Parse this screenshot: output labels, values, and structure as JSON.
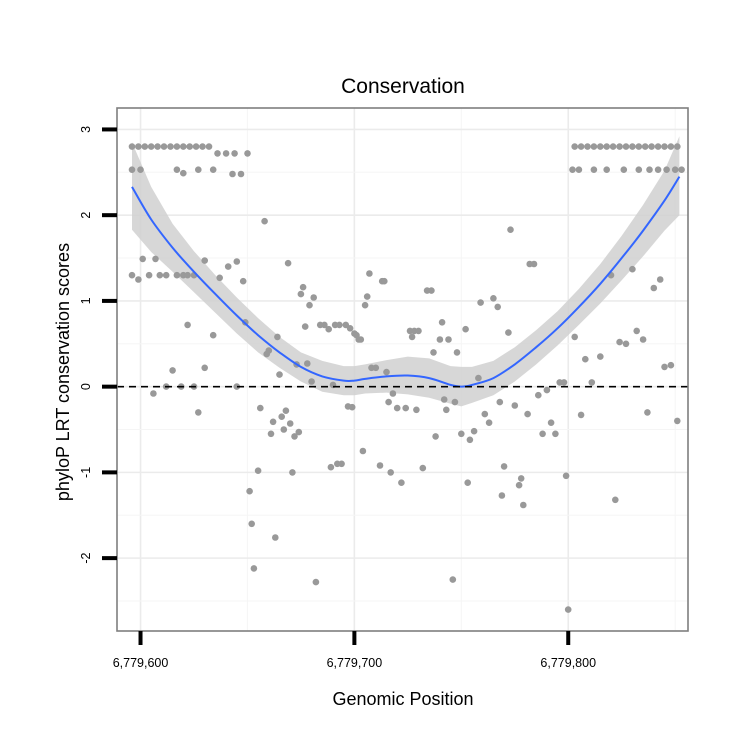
{
  "chart_data": {
    "type": "scatter",
    "title": "Conservation",
    "xlabel": "Genomic Position",
    "ylabel": "phyloP LRT conservation scores",
    "xlim": [
      6779589,
      6779856
    ],
    "ylim": [
      -2.85,
      3.25
    ],
    "x_ticks": [
      {
        "value": 6779600,
        "label": "6,779,600"
      },
      {
        "value": 6779700,
        "label": "6,779,700"
      },
      {
        "value": 6779800,
        "label": "6,779,800"
      }
    ],
    "y_ticks": [
      {
        "value": 3,
        "label": "3"
      },
      {
        "value": 2,
        "label": "2"
      },
      {
        "value": 1,
        "label": "1"
      },
      {
        "value": 0,
        "label": "0"
      },
      {
        "value": -1,
        "label": "-1"
      },
      {
        "value": -2,
        "label": "-2"
      }
    ],
    "reference_line": {
      "y": 0,
      "style": "dashed"
    },
    "series": [
      {
        "name": "scores",
        "kind": "points",
        "color": "#999999",
        "points": [
          [
            6779596,
            2.8
          ],
          [
            6779599,
            2.8
          ],
          [
            6779602,
            2.8
          ],
          [
            6779605,
            2.8
          ],
          [
            6779608,
            2.8
          ],
          [
            6779611,
            2.8
          ],
          [
            6779614,
            2.8
          ],
          [
            6779617,
            2.8
          ],
          [
            6779620,
            2.8
          ],
          [
            6779623,
            2.8
          ],
          [
            6779626,
            2.8
          ],
          [
            6779629,
            2.8
          ],
          [
            6779632,
            2.8
          ],
          [
            6779636,
            2.72
          ],
          [
            6779640,
            2.72
          ],
          [
            6779644,
            2.72
          ],
          [
            6779650,
            2.72
          ],
          [
            6779596,
            2.53
          ],
          [
            6779600,
            2.53
          ],
          [
            6779617,
            2.53
          ],
          [
            6779620,
            2.49
          ],
          [
            6779627,
            2.53
          ],
          [
            6779634,
            2.53
          ],
          [
            6779643,
            2.48
          ],
          [
            6779647,
            2.48
          ],
          [
            6779596,
            1.3
          ],
          [
            6779599,
            1.25
          ],
          [
            6779601,
            1.49
          ],
          [
            6779604,
            1.3
          ],
          [
            6779607,
            1.49
          ],
          [
            6779609,
            1.3
          ],
          [
            6779612,
            1.3
          ],
          [
            6779617,
            1.3
          ],
          [
            6779620,
            1.3
          ],
          [
            6779622,
            1.3
          ],
          [
            6779625,
            1.3
          ],
          [
            6779630,
            1.47
          ],
          [
            6779637,
            1.27
          ],
          [
            6779641,
            1.4
          ],
          [
            6779645,
            1.46
          ],
          [
            6779648,
            1.23
          ],
          [
            6779606,
            -0.08
          ],
          [
            6779612,
            0.0
          ],
          [
            6779615,
            0.19
          ],
          [
            6779619,
            0.0
          ],
          [
            6779622,
            0.72
          ],
          [
            6779625,
            0.0
          ],
          [
            6779627,
            -0.3
          ],
          [
            6779630,
            0.22
          ],
          [
            6779634,
            0.6
          ],
          [
            6779645,
            0.0
          ],
          [
            6779649,
            0.75
          ],
          [
            6779651,
            -1.22
          ],
          [
            6779652,
            -1.6
          ],
          [
            6779653,
            -2.12
          ],
          [
            6779655,
            -0.98
          ],
          [
            6779656,
            -0.25
          ],
          [
            6779658,
            1.93
          ],
          [
            6779659,
            0.38
          ],
          [
            6779660,
            0.42
          ],
          [
            6779661,
            -0.55
          ],
          [
            6779662,
            -0.41
          ],
          [
            6779663,
            -1.76
          ],
          [
            6779664,
            0.58
          ],
          [
            6779665,
            0.14
          ],
          [
            6779666,
            -0.35
          ],
          [
            6779667,
            -0.5
          ],
          [
            6779668,
            -0.28
          ],
          [
            6779669,
            1.44
          ],
          [
            6779670,
            -0.43
          ],
          [
            6779671,
            -1.0
          ],
          [
            6779672,
            -0.58
          ],
          [
            6779673,
            0.26
          ],
          [
            6779674,
            -0.53
          ],
          [
            6779675,
            1.08
          ],
          [
            6779676,
            1.16
          ],
          [
            6779677,
            0.7
          ],
          [
            6779678,
            0.27
          ],
          [
            6779679,
            0.95
          ],
          [
            6779680,
            0.06
          ],
          [
            6779681,
            1.04
          ],
          [
            6779682,
            -2.28
          ],
          [
            6779684,
            0.72
          ],
          [
            6779686,
            0.72
          ],
          [
            6779688,
            0.67
          ],
          [
            6779689,
            -0.94
          ],
          [
            6779690,
            0.02
          ],
          [
            6779691,
            0.72
          ],
          [
            6779692,
            -0.9
          ],
          [
            6779693,
            0.72
          ],
          [
            6779694,
            -0.9
          ],
          [
            6779696,
            0.72
          ],
          [
            6779697,
            -0.23
          ],
          [
            6779698,
            0.68
          ],
          [
            6779699,
            -0.24
          ],
          [
            6779700,
            0.62
          ],
          [
            6779701,
            0.6
          ],
          [
            6779702,
            0.55
          ],
          [
            6779703,
            0.55
          ],
          [
            6779704,
            -0.75
          ],
          [
            6779705,
            0.95
          ],
          [
            6779706,
            1.05
          ],
          [
            6779707,
            1.32
          ],
          [
            6779708,
            0.22
          ],
          [
            6779710,
            0.22
          ],
          [
            6779712,
            -0.92
          ],
          [
            6779713,
            1.23
          ],
          [
            6779714,
            1.23
          ],
          [
            6779715,
            0.17
          ],
          [
            6779716,
            -0.18
          ],
          [
            6779717,
            -1.0
          ],
          [
            6779718,
            -0.08
          ],
          [
            6779720,
            -0.25
          ],
          [
            6779722,
            -1.12
          ],
          [
            6779724,
            -0.25
          ],
          [
            6779726,
            0.65
          ],
          [
            6779727,
            0.58
          ],
          [
            6779728,
            0.65
          ],
          [
            6779729,
            -0.27
          ],
          [
            6779730,
            0.65
          ],
          [
            6779732,
            -0.95
          ],
          [
            6779734,
            1.12
          ],
          [
            6779736,
            1.12
          ],
          [
            6779737,
            0.4
          ],
          [
            6779738,
            -0.58
          ],
          [
            6779740,
            0.55
          ],
          [
            6779741,
            0.75
          ],
          [
            6779742,
            -0.15
          ],
          [
            6779743,
            -0.27
          ],
          [
            6779744,
            0.55
          ],
          [
            6779746,
            -2.25
          ],
          [
            6779747,
            -0.18
          ],
          [
            6779748,
            0.4
          ],
          [
            6779750,
            -0.55
          ],
          [
            6779752,
            0.67
          ],
          [
            6779753,
            -1.12
          ],
          [
            6779754,
            -0.62
          ],
          [
            6779756,
            -0.52
          ],
          [
            6779758,
            0.1
          ],
          [
            6779759,
            0.98
          ],
          [
            6779761,
            -0.32
          ],
          [
            6779763,
            -0.42
          ],
          [
            6779765,
            1.03
          ],
          [
            6779767,
            0.93
          ],
          [
            6779768,
            -0.18
          ],
          [
            6779769,
            -1.27
          ],
          [
            6779770,
            -0.93
          ],
          [
            6779772,
            0.63
          ],
          [
            6779773,
            1.83
          ],
          [
            6779775,
            -0.22
          ],
          [
            6779777,
            -1.15
          ],
          [
            6779778,
            -1.07
          ],
          [
            6779779,
            -1.38
          ],
          [
            6779781,
            -0.32
          ],
          [
            6779782,
            1.43
          ],
          [
            6779784,
            1.43
          ],
          [
            6779786,
            -0.1
          ],
          [
            6779788,
            -0.55
          ],
          [
            6779790,
            -0.04
          ],
          [
            6779792,
            -0.42
          ],
          [
            6779794,
            -0.55
          ],
          [
            6779796,
            0.05
          ],
          [
            6779798,
            0.05
          ],
          [
            6779799,
            -1.04
          ],
          [
            6779800,
            -2.6
          ],
          [
            6779803,
            0.58
          ],
          [
            6779806,
            -0.33
          ],
          [
            6779808,
            0.32
          ],
          [
            6779811,
            0.05
          ],
          [
            6779815,
            0.35
          ],
          [
            6779820,
            1.3
          ],
          [
            6779822,
            -1.32
          ],
          [
            6779824,
            0.52
          ],
          [
            6779827,
            0.5
          ],
          [
            6779830,
            1.37
          ],
          [
            6779832,
            0.65
          ],
          [
            6779835,
            0.55
          ],
          [
            6779837,
            -0.3
          ],
          [
            6779840,
            1.15
          ],
          [
            6779843,
            1.25
          ],
          [
            6779845,
            0.23
          ],
          [
            6779848,
            0.25
          ],
          [
            6779851,
            -0.4
          ],
          [
            6779802,
            2.53
          ],
          [
            6779805,
            2.53
          ],
          [
            6779812,
            2.53
          ],
          [
            6779818,
            2.53
          ],
          [
            6779826,
            2.53
          ],
          [
            6779833,
            2.53
          ],
          [
            6779838,
            2.53
          ],
          [
            6779842,
            2.53
          ],
          [
            6779846,
            2.53
          ],
          [
            6779850,
            2.53
          ],
          [
            6779853,
            2.53
          ],
          [
            6779803,
            2.8
          ],
          [
            6779806,
            2.8
          ],
          [
            6779809,
            2.8
          ],
          [
            6779812,
            2.8
          ],
          [
            6779815,
            2.8
          ],
          [
            6779818,
            2.8
          ],
          [
            6779821,
            2.8
          ],
          [
            6779824,
            2.8
          ],
          [
            6779827,
            2.8
          ],
          [
            6779830,
            2.8
          ],
          [
            6779833,
            2.8
          ],
          [
            6779836,
            2.8
          ],
          [
            6779839,
            2.8
          ],
          [
            6779842,
            2.8
          ],
          [
            6779845,
            2.8
          ],
          [
            6779848,
            2.8
          ],
          [
            6779851,
            2.8
          ]
        ]
      },
      {
        "name": "loess fit",
        "kind": "line",
        "color": "#3366ff",
        "x": [
          6779596,
          6779605,
          6779615,
          6779625,
          6779635,
          6779645,
          6779655,
          6779665,
          6779675,
          6779685,
          6779695,
          6779700,
          6779705,
          6779715,
          6779725,
          6779735,
          6779745,
          6779750,
          6779755,
          6779765,
          6779775,
          6779785,
          6779795,
          6779805,
          6779815,
          6779825,
          6779835,
          6779845,
          6779852
        ],
        "y": [
          2.33,
          1.95,
          1.62,
          1.34,
          1.08,
          0.83,
          0.6,
          0.4,
          0.23,
          0.12,
          0.07,
          0.07,
          0.09,
          0.12,
          0.13,
          0.1,
          0.02,
          0.0,
          0.02,
          0.1,
          0.26,
          0.46,
          0.68,
          0.93,
          1.2,
          1.5,
          1.82,
          2.17,
          2.45
        ]
      },
      {
        "name": "confidence band",
        "kind": "band",
        "color": "#d0d0d0",
        "x": [
          6779596,
          6779605,
          6779615,
          6779625,
          6779635,
          6779645,
          6779655,
          6779665,
          6779675,
          6779685,
          6779695,
          6779700,
          6779705,
          6779715,
          6779725,
          6779735,
          6779745,
          6779750,
          6779755,
          6779765,
          6779775,
          6779785,
          6779795,
          6779805,
          6779815,
          6779825,
          6779835,
          6779845,
          6779852
        ],
        "lower": [
          1.83,
          1.57,
          1.34,
          1.1,
          0.86,
          0.62,
          0.4,
          0.22,
          0.06,
          -0.06,
          -0.1,
          -0.1,
          -0.08,
          -0.07,
          -0.09,
          -0.13,
          -0.2,
          -0.23,
          -0.19,
          -0.1,
          0.06,
          0.26,
          0.48,
          0.72,
          0.97,
          1.24,
          1.52,
          1.82,
          2.0
        ],
        "upper": [
          2.85,
          2.33,
          1.9,
          1.58,
          1.3,
          1.04,
          0.8,
          0.58,
          0.4,
          0.3,
          0.24,
          0.24,
          0.26,
          0.31,
          0.35,
          0.33,
          0.24,
          0.23,
          0.23,
          0.3,
          0.46,
          0.66,
          0.88,
          1.14,
          1.43,
          1.76,
          2.12,
          2.52,
          2.92
        ]
      }
    ]
  }
}
